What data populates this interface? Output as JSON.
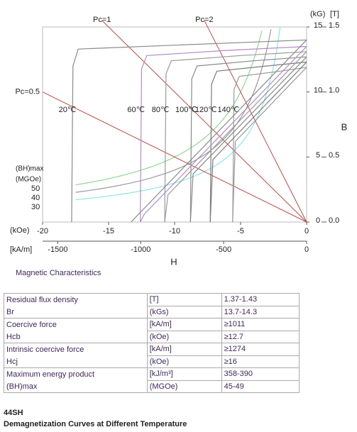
{
  "chart_data": {
    "type": "line",
    "x_label": "H",
    "y_label": "B",
    "x_unit": "(kOe)",
    "xlim": [
      -20,
      0
    ],
    "xticks": [
      -20,
      -15,
      -10,
      -5,
      0
    ],
    "x2_unit": "[kA/m]",
    "x2lim": [
      -1591.5,
      0
    ],
    "x2ticks": [
      -1500,
      -1000,
      -500,
      0
    ],
    "y_unit": "(kG)",
    "ylim": [
      0,
      15
    ],
    "yticks": [
      0,
      5,
      10,
      15
    ],
    "y2_unit": "[T]",
    "y2lim": [
      0,
      1.5
    ],
    "y2ticks": [
      {
        "value": 0,
        "label": "0.0"
      },
      0.5,
      {
        "value": 1,
        "label": "1.0"
      },
      1.5
    ],
    "load_lines": {
      "color": "#c04848",
      "labels": [
        "Pc=1",
        "Pc=2",
        "Pc=0.5"
      ],
      "slopes": [
        1,
        2,
        0.5
      ]
    },
    "bh_max": {
      "label": "(BH)max",
      "unit": "(MGOe)",
      "values": [
        50,
        40,
        30
      ],
      "colors": [
        "#8fd88f",
        "#9a9a9a",
        "#8ee6e6"
      ]
    },
    "series": [
      {
        "name": "20℃",
        "color": "#8a8a8a",
        "x": [
          -17.8,
          -17.7,
          -17.3,
          -10,
          0
        ],
        "values": [
          0,
          12,
          13.3,
          13.6,
          14.0
        ]
      },
      {
        "name": "60℃",
        "color": "#b58ac8",
        "x": [
          -12.6,
          -12.5,
          -12.1,
          -6,
          0
        ],
        "values": [
          0,
          11.8,
          12.8,
          13.2,
          13.5
        ]
      },
      {
        "name": "80℃",
        "color": "#9a9a9a",
        "x": [
          -10.75,
          -10.65,
          -10.25,
          -5,
          0
        ],
        "values": [
          0,
          11.4,
          12.4,
          12.8,
          13.1
        ]
      },
      {
        "name": "100℃",
        "color": "#8a8a8a",
        "x": [
          -8.8,
          -8.7,
          -8.3,
          -4,
          0
        ],
        "values": [
          0,
          11.0,
          12.0,
          12.4,
          12.7
        ]
      },
      {
        "name": "120℃",
        "color": "#7a7a7a",
        "x": [
          -7.3,
          -7.2,
          -6.8,
          -3,
          0
        ],
        "values": [
          0,
          10.6,
          11.6,
          12.0,
          12.3
        ]
      },
      {
        "name": "140℃",
        "color": "#9a9a9a",
        "x": [
          -5.6,
          -5.5,
          -5.1,
          -2,
          0
        ],
        "values": [
          0,
          10.2,
          11.2,
          11.6,
          11.9
        ]
      },
      {
        "color": "#8a8a8a",
        "x": [
          -13.3,
          0
        ],
        "values": [
          0,
          14.0
        ]
      },
      {
        "color": "#b58ac8",
        "x": [
          -12.6,
          -12.3,
          0
        ],
        "values": [
          0,
          0.6,
          13.5
        ]
      },
      {
        "color": "#9a9a9a",
        "x": [
          -10.75,
          -10.5,
          0
        ],
        "values": [
          0,
          2.1,
          13.1
        ]
      },
      {
        "color": "#8a8a8a",
        "x": [
          -8.8,
          -8.6,
          0
        ],
        "values": [
          0,
          3.7,
          12.7
        ]
      },
      {
        "color": "#7a7a7a",
        "x": [
          -7.3,
          -7.1,
          0
        ],
        "values": [
          0,
          4.8,
          12.3
        ]
      },
      {
        "color": "#9a9a9a",
        "x": [
          -5.6,
          -5.4,
          0
        ],
        "values": [
          0,
          6.2,
          11.9
        ]
      }
    ]
  },
  "caption": "Magnetic Characteristics",
  "table": {
    "rows": [
      [
        "Residual flux density",
        "[T]",
        "1.37-1.43"
      ],
      [
        "Br",
        "(kGs)",
        "13.7-14.3"
      ],
      [
        "Coercive force",
        "[kA/m]",
        "≥1011"
      ],
      [
        "Hcb",
        "(kOe)",
        "≥12.7"
      ],
      [
        "Intrinsic coercive force",
        "[kA/m]",
        "≥1274"
      ],
      [
        "Hcj",
        "(kOe)",
        "≥16"
      ],
      [
        "Maximum energy product",
        "[kJ/m³]",
        "358-390"
      ],
      [
        "(BH)max",
        "(MGOe)",
        "45-49"
      ]
    ]
  },
  "footer": {
    "grade": "44SH",
    "title": "Demagnetization Curves at Different Temperature"
  }
}
